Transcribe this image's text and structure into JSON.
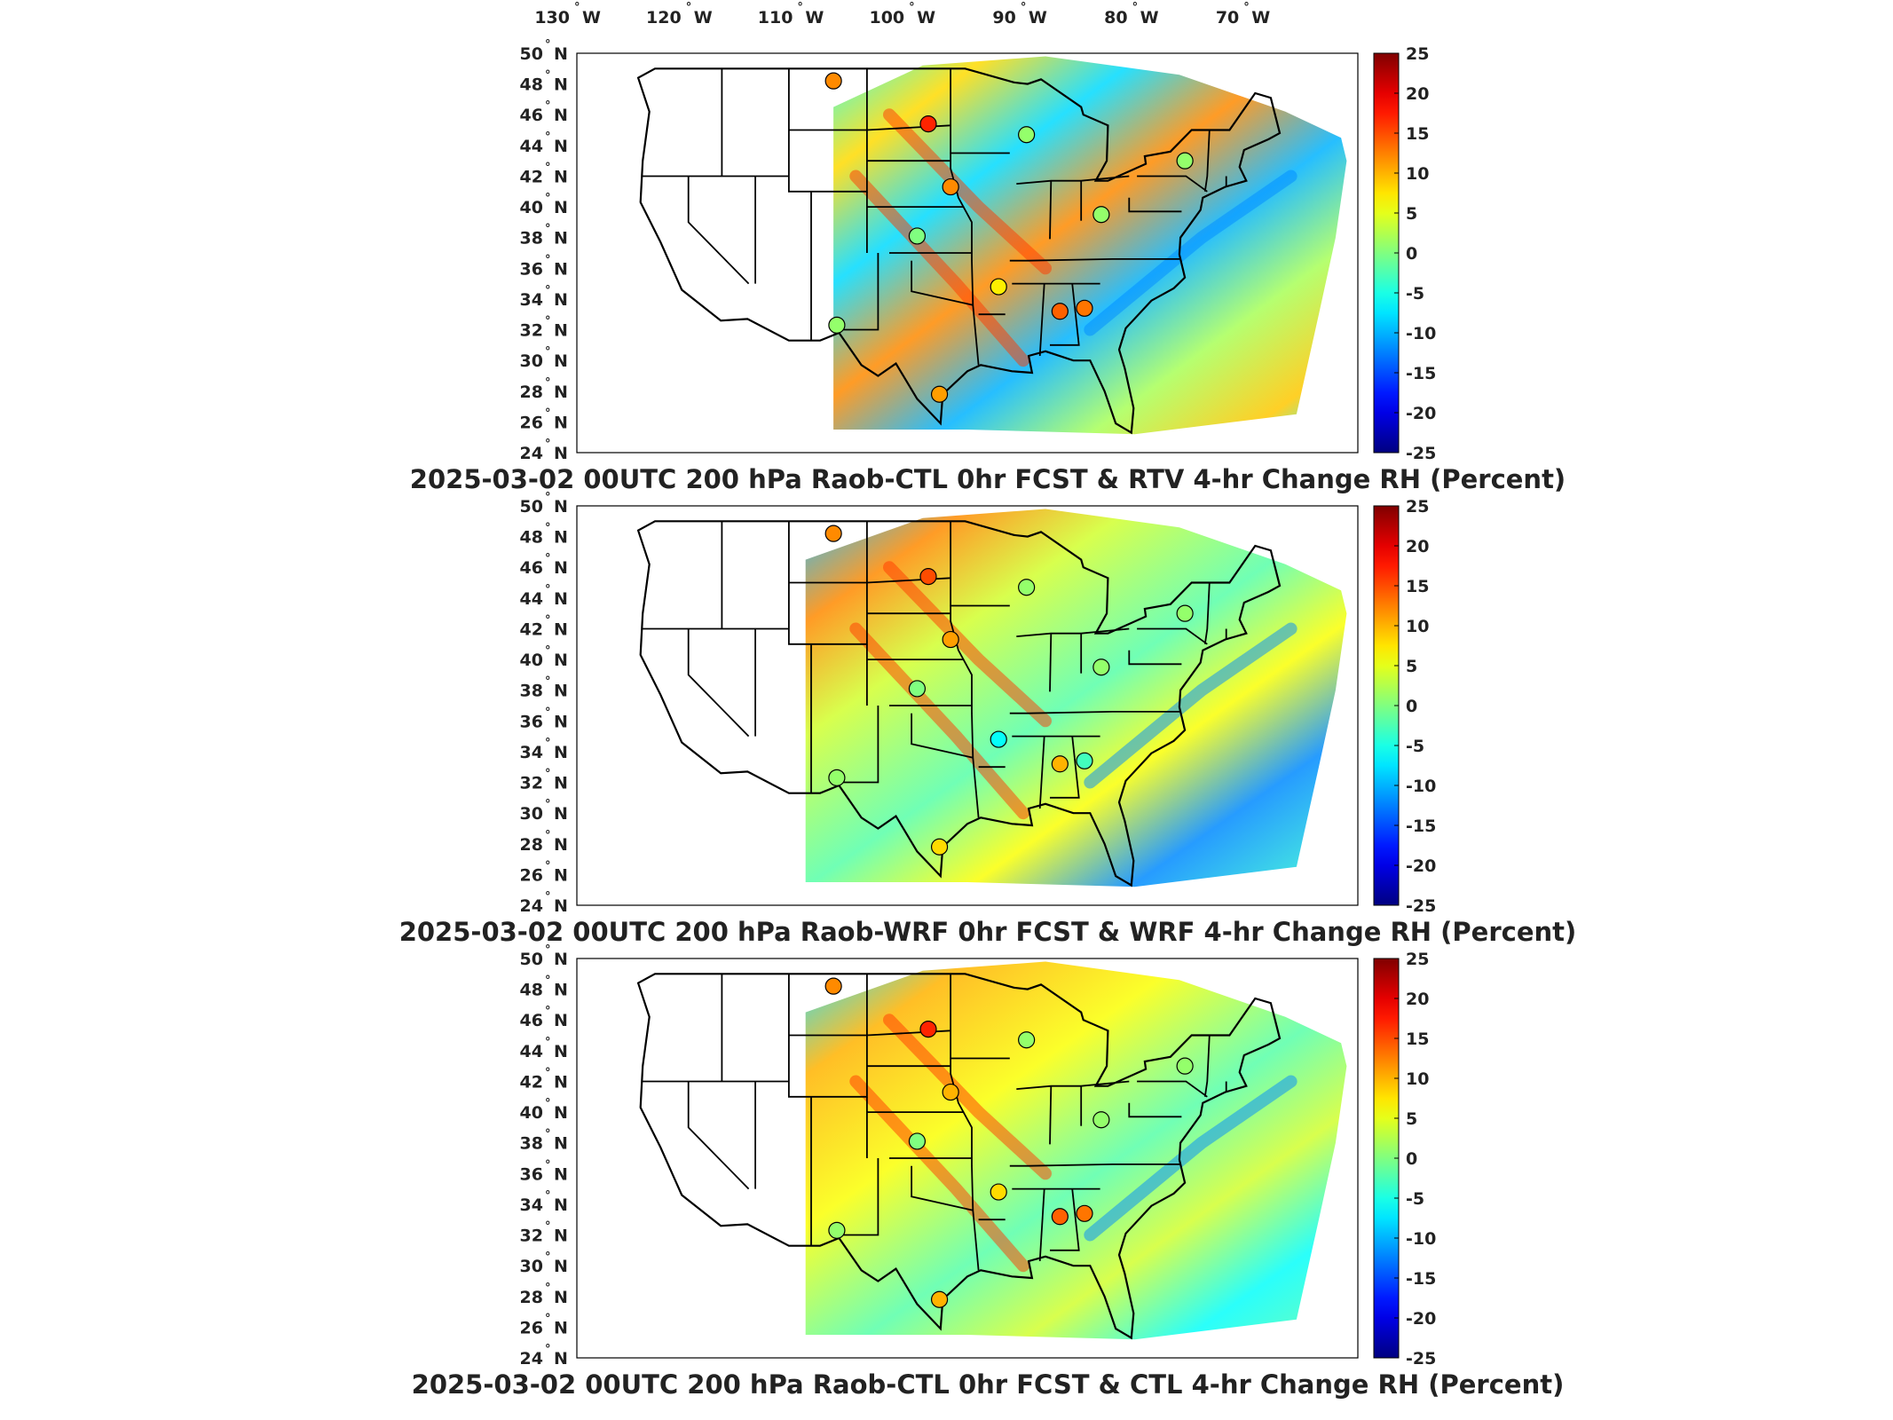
{
  "figure": {
    "lon_ticks": [
      "130",
      "120",
      "110",
      "100",
      "90",
      "80",
      "70"
    ],
    "lon_unit": "W",
    "lat_ticks": [
      "50",
      "48",
      "46",
      "44",
      "42",
      "40",
      "38",
      "36",
      "34",
      "32",
      "30",
      "28",
      "26",
      "24"
    ],
    "lat_unit": "N",
    "degree_mark": "°",
    "colorbar": {
      "ticks": [
        "25",
        "20",
        "15",
        "10",
        "5",
        "0",
        "-5",
        "-10",
        "-15",
        "-20",
        "-25"
      ],
      "min": -25,
      "max": 25,
      "colormap": "jet"
    },
    "panels": [
      {
        "title": "2025-03-02 00UTC 200 hPa Raob-CTL 0hr FCST & RTV 4-hr Change RH (Percent)",
        "stations": [
          {
            "lon": -107,
            "lat": 48.2,
            "value": 12
          },
          {
            "lon": -98.5,
            "lat": 45.4,
            "value": 17
          },
          {
            "lon": -96.5,
            "lat": 41.3,
            "value": 12
          },
          {
            "lon": -99.5,
            "lat": 38.1,
            "value": 0
          },
          {
            "lon": -92.2,
            "lat": 34.8,
            "value": 7
          },
          {
            "lon": -86.7,
            "lat": 33.2,
            "value": 14
          },
          {
            "lon": -84.5,
            "lat": 33.4,
            "value": 13
          },
          {
            "lon": -106.7,
            "lat": 32.3,
            "value": 1
          },
          {
            "lon": -97.5,
            "lat": 27.8,
            "value": 11
          },
          {
            "lon": -89.7,
            "lat": 44.7,
            "value": 1
          },
          {
            "lon": -83.0,
            "lat": 39.5,
            "value": 1
          },
          {
            "lon": -75.5,
            "lat": 43.0,
            "value": 1
          }
        ]
      },
      {
        "title": "2025-03-02 00UTC 200 hPa Raob-WRF 0hr FCST & WRF 4-hr Change RH (Percent)",
        "stations": [
          {
            "lon": -107,
            "lat": 48.2,
            "value": 12
          },
          {
            "lon": -98.5,
            "lat": 45.4,
            "value": 15
          },
          {
            "lon": -96.5,
            "lat": 41.3,
            "value": 11
          },
          {
            "lon": -99.5,
            "lat": 38.1,
            "value": 0
          },
          {
            "lon": -92.2,
            "lat": 34.8,
            "value": -6
          },
          {
            "lon": -86.7,
            "lat": 33.2,
            "value": 10
          },
          {
            "lon": -84.5,
            "lat": 33.4,
            "value": -3
          },
          {
            "lon": -106.7,
            "lat": 32.3,
            "value": 1
          },
          {
            "lon": -97.5,
            "lat": 27.8,
            "value": 8
          },
          {
            "lon": -89.7,
            "lat": 44.7,
            "value": 1
          },
          {
            "lon": -83.0,
            "lat": 39.5,
            "value": 1
          },
          {
            "lon": -75.5,
            "lat": 43.0,
            "value": 1
          }
        ]
      },
      {
        "title": "2025-03-02 00UTC 200 hPa Raob-CTL 0hr FCST & CTL 4-hr Change RH (Percent)",
        "stations": [
          {
            "lon": -107,
            "lat": 48.2,
            "value": 12
          },
          {
            "lon": -98.5,
            "lat": 45.4,
            "value": 17
          },
          {
            "lon": -96.5,
            "lat": 41.3,
            "value": 10
          },
          {
            "lon": -99.5,
            "lat": 38.1,
            "value": 0
          },
          {
            "lon": -92.2,
            "lat": 34.8,
            "value": 8
          },
          {
            "lon": -86.7,
            "lat": 33.2,
            "value": 14
          },
          {
            "lon": -84.5,
            "lat": 33.4,
            "value": 13
          },
          {
            "lon": -106.7,
            "lat": 32.3,
            "value": 1
          },
          {
            "lon": -97.5,
            "lat": 27.8,
            "value": 10
          },
          {
            "lon": -89.7,
            "lat": 44.7,
            "value": 1
          },
          {
            "lon": -83.0,
            "lat": 39.5,
            "value": 1
          },
          {
            "lon": -75.5,
            "lat": 43.0,
            "value": 1
          }
        ]
      }
    ]
  }
}
